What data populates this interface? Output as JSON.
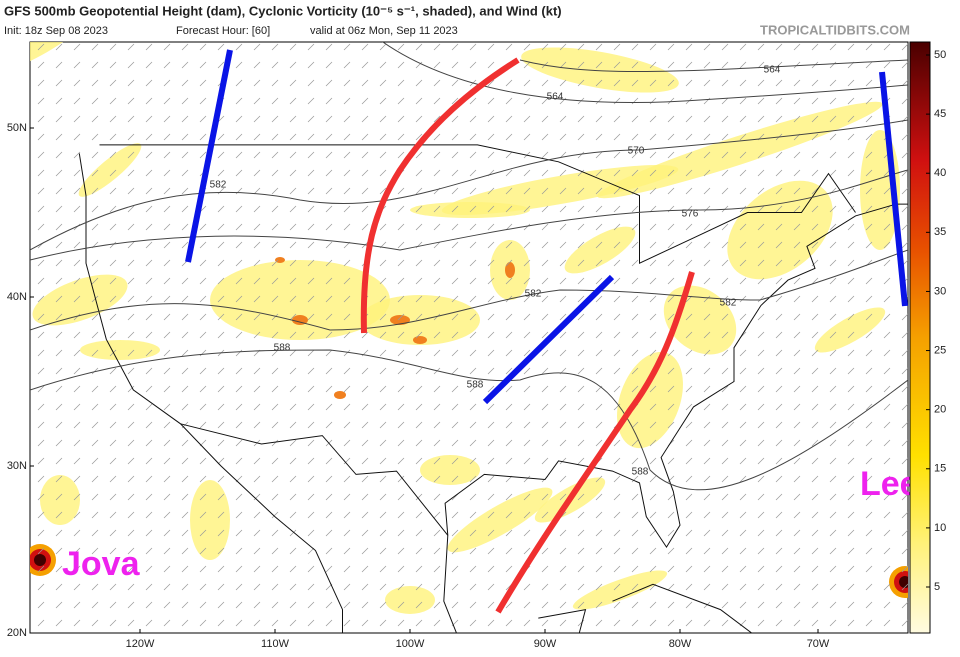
{
  "header": {
    "title": "GFS 500mb Geopotential Height (dam), Cyclonic Vorticity (10⁻⁵ s⁻¹, shaded), and Wind (kt)",
    "init": "Init: 18z Sep 08 2023",
    "forecast": "Forecast Hour: [60]",
    "valid": "valid at 06z Mon, Sep 11 2023",
    "credit": "TROPICALTIDBITS.COM"
  },
  "map": {
    "lat_labels": [
      "50N",
      "40N",
      "30N",
      "20N"
    ],
    "lon_labels": [
      "120W",
      "110W",
      "100W",
      "90W",
      "80W",
      "70W"
    ],
    "contour_labels": [
      "564",
      "564",
      "570",
      "576",
      "582",
      "582",
      "582",
      "588",
      "588",
      "588"
    ]
  },
  "colorbar": {
    "ticks": [
      5,
      10,
      15,
      20,
      25,
      30,
      35,
      40,
      45,
      50
    ]
  },
  "annotations": {
    "west_storm": "Jova",
    "east_storm": "Lee"
  }
}
